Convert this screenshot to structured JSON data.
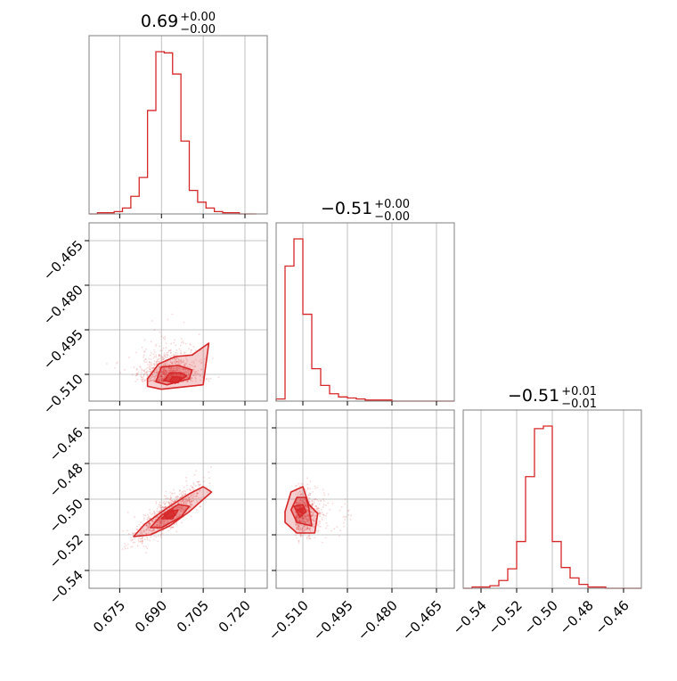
{
  "figure": {
    "type": "corner",
    "colors": {
      "line": "#d62728",
      "fill": "#d62728",
      "grid": "#b0b0b0",
      "frame": "#7f7f7f",
      "text": "#000000"
    }
  },
  "chart_data": [
    {
      "panel": "hist-param-1",
      "type": "bar",
      "title": {
        "value": "0.69",
        "upper": "+0.00",
        "lower": "−0.00"
      },
      "xlim": [
        0.664,
        0.728
      ],
      "bin_edges": [
        0.664,
        0.667,
        0.67,
        0.673,
        0.676,
        0.679,
        0.682,
        0.685,
        0.688,
        0.691,
        0.694,
        0.697,
        0.7,
        0.703,
        0.706,
        0.709,
        0.712,
        0.715,
        0.718,
        0.721,
        0.724
      ],
      "counts": [
        0,
        1,
        1,
        2,
        5,
        15,
        31,
        88,
        138,
        137,
        119,
        62,
        20,
        10,
        5,
        2,
        1,
        1,
        0,
        0
      ],
      "xticks": [
        "0.675",
        "0.690",
        "0.705",
        "0.720"
      ],
      "xtick_values": [
        0.675,
        0.69,
        0.705,
        0.72
      ]
    },
    {
      "panel": "hist-param-2",
      "type": "bar",
      "title": {
        "value": "−0.51",
        "upper": "+0.00",
        "lower": "−0.00"
      },
      "xlim": [
        -0.519,
        -0.459
      ],
      "bin_edges": [
        -0.519,
        -0.516,
        -0.513,
        -0.51,
        -0.507,
        -0.504,
        -0.501,
        -0.498,
        -0.495,
        -0.492,
        -0.489,
        -0.486,
        -0.483,
        -0.48,
        -0.477,
        -0.474,
        -0.471,
        -0.468,
        -0.465,
        -0.462,
        -0.459
      ],
      "counts": [
        2,
        129,
        155,
        83,
        31,
        15,
        7,
        4,
        3,
        2,
        1,
        1,
        1,
        0,
        0,
        0,
        0,
        0,
        0,
        0
      ],
      "xticks": [
        "−0.510",
        "−0.495",
        "−0.480",
        "−0.465"
      ],
      "xtick_values": [
        -0.51,
        -0.495,
        -0.48,
        -0.465
      ]
    },
    {
      "panel": "hist-param-3",
      "type": "bar",
      "title": {
        "value": "−0.51",
        "upper": "+0.01",
        "lower": "−0.01"
      },
      "xlim": [
        -0.55,
        -0.45
      ],
      "bin_edges": [
        -0.55,
        -0.545,
        -0.54,
        -0.535,
        -0.53,
        -0.525,
        -0.52,
        -0.515,
        -0.51,
        -0.505,
        -0.5,
        -0.495,
        -0.49,
        -0.485,
        -0.48,
        -0.475,
        -0.47,
        -0.465,
        -0.46,
        -0.455,
        -0.45
      ],
      "counts": [
        0,
        1,
        1,
        2,
        6,
        15,
        36,
        86,
        123,
        125,
        36,
        16,
        8,
        3,
        1,
        1,
        0,
        0,
        0,
        0
      ],
      "xticks": [
        "−0.54",
        "−0.52",
        "−0.50",
        "−0.48",
        "−0.46"
      ],
      "xtick_values": [
        -0.54,
        -0.52,
        -0.5,
        -0.48,
        -0.46
      ]
    },
    {
      "panel": "scatter-p1-p2",
      "type": "scatter",
      "xlim": [
        0.664,
        0.728
      ],
      "ylim": [
        -0.519,
        -0.459
      ],
      "yticks": [
        "−0.465",
        "−0.480",
        "−0.495",
        "−0.510"
      ],
      "ytick_values": [
        -0.465,
        -0.48,
        -0.495,
        -0.51
      ],
      "contours": [
        [
          [
            0.685,
            -0.5115
          ],
          [
            0.689,
            -0.5065
          ],
          [
            0.695,
            -0.504
          ],
          [
            0.701,
            -0.5035
          ],
          [
            0.707,
            -0.4995
          ],
          [
            0.705,
            -0.5135
          ],
          [
            0.69,
            -0.515
          ],
          [
            0.685,
            -0.514
          ]
        ],
        [
          [
            0.688,
            -0.5125
          ],
          [
            0.69,
            -0.5075
          ],
          [
            0.696,
            -0.507
          ],
          [
            0.701,
            -0.5085
          ],
          [
            0.7,
            -0.5115
          ],
          [
            0.692,
            -0.5135
          ]
        ],
        [
          [
            0.691,
            -0.512
          ],
          [
            0.693,
            -0.5095
          ],
          [
            0.697,
            -0.5095
          ],
          [
            0.699,
            -0.5105
          ],
          [
            0.695,
            -0.513
          ]
        ],
        [
          [
            0.693,
            -0.5125
          ],
          [
            0.694,
            -0.5108
          ],
          [
            0.697,
            -0.511
          ],
          [
            0.696,
            -0.5128
          ]
        ]
      ]
    },
    {
      "panel": "scatter-p1-p3",
      "type": "scatter",
      "xlim": [
        0.664,
        0.728
      ],
      "ylim": [
        -0.55,
        -0.45
      ],
      "yticks": [
        "−0.46",
        "−0.48",
        "−0.50",
        "−0.52",
        "−0.54"
      ],
      "ytick_values": [
        -0.46,
        -0.48,
        -0.5,
        -0.52,
        -0.54
      ],
      "contours": [
        [
          [
            0.68,
            -0.521
          ],
          [
            0.684,
            -0.514
          ],
          [
            0.692,
            -0.505
          ],
          [
            0.7,
            -0.497
          ],
          [
            0.705,
            -0.493
          ],
          [
            0.708,
            -0.496
          ],
          [
            0.7,
            -0.507
          ],
          [
            0.693,
            -0.515
          ],
          [
            0.686,
            -0.52
          ]
        ],
        [
          [
            0.686,
            -0.516
          ],
          [
            0.69,
            -0.509
          ],
          [
            0.696,
            -0.503
          ],
          [
            0.7,
            -0.504
          ],
          [
            0.697,
            -0.51
          ],
          [
            0.69,
            -0.516
          ]
        ],
        [
          [
            0.69,
            -0.511
          ],
          [
            0.693,
            -0.507
          ],
          [
            0.696,
            -0.506
          ],
          [
            0.694,
            -0.511
          ]
        ],
        [
          [
            0.691,
            -0.509
          ],
          [
            0.694,
            -0.506
          ],
          [
            0.695,
            -0.509
          ],
          [
            0.692,
            -0.511
          ]
        ]
      ]
    },
    {
      "panel": "scatter-p2-p3",
      "type": "scatter",
      "xlim": [
        -0.519,
        -0.459
      ],
      "ylim": [
        -0.55,
        -0.45
      ],
      "contours": [
        [
          [
            -0.516,
            -0.507
          ],
          [
            -0.514,
            -0.496
          ],
          [
            -0.51,
            -0.493
          ],
          [
            -0.508,
            -0.503
          ],
          [
            -0.505,
            -0.508
          ],
          [
            -0.506,
            -0.519
          ],
          [
            -0.512,
            -0.519
          ],
          [
            -0.516,
            -0.513
          ]
        ],
        [
          [
            -0.514,
            -0.506
          ],
          [
            -0.512,
            -0.499
          ],
          [
            -0.509,
            -0.499
          ],
          [
            -0.508,
            -0.505
          ],
          [
            -0.507,
            -0.515
          ],
          [
            -0.512,
            -0.513
          ]
        ],
        [
          [
            -0.513,
            -0.504
          ],
          [
            -0.51,
            -0.503
          ],
          [
            -0.509,
            -0.507
          ],
          [
            -0.511,
            -0.51
          ]
        ],
        [
          [
            -0.512,
            -0.506
          ],
          [
            -0.51,
            -0.505
          ],
          [
            -0.51,
            -0.508
          ]
        ]
      ]
    }
  ]
}
